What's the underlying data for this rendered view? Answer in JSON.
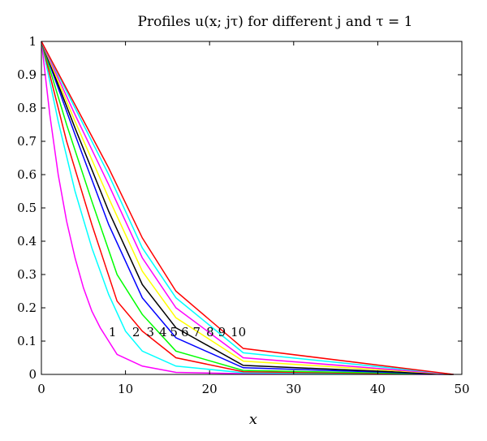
{
  "chart_data": {
    "type": "line",
    "title": "Profiles u(x; jτ) for different j and τ = 1",
    "xlabel": "x",
    "ylabel": "",
    "xlim": [
      0,
      50
    ],
    "ylim": [
      0,
      1
    ],
    "xticks": [
      "0",
      "10",
      "20",
      "30",
      "40",
      "50"
    ],
    "yticks": [
      "0",
      "0.1",
      "0.2",
      "0.3",
      "0.4",
      "0.5",
      "0.6",
      "0.7",
      "0.8",
      "0.9",
      "1"
    ],
    "grid": false,
    "series": [
      {
        "label": "1",
        "color": "#ff00ff",
        "x": [
          0,
          1,
          2,
          3,
          4,
          5,
          6,
          7,
          8,
          9,
          12,
          16,
          24,
          49
        ],
        "y": [
          1.0,
          0.78,
          0.6,
          0.46,
          0.35,
          0.26,
          0.19,
          0.14,
          0.1,
          0.06,
          0.025,
          0.006,
          0.002,
          0.0
        ]
      },
      {
        "label": "2",
        "color": "#00ffff",
        "x": [
          0,
          2,
          4,
          6,
          8,
          10,
          12,
          16,
          24,
          49
        ],
        "y": [
          1.0,
          0.76,
          0.55,
          0.38,
          0.24,
          0.13,
          0.07,
          0.025,
          0.005,
          0.0
        ]
      },
      {
        "label": "3",
        "color": "#ff0000",
        "x": [
          0,
          3,
          6,
          9,
          12,
          16,
          24,
          49
        ],
        "y": [
          1.0,
          0.7,
          0.45,
          0.22,
          0.13,
          0.05,
          0.008,
          0.0
        ]
      },
      {
        "label": "4",
        "color": "#00ff00",
        "x": [
          0,
          3,
          6,
          9,
          12,
          16,
          24,
          49
        ],
        "y": [
          1.0,
          0.75,
          0.52,
          0.3,
          0.18,
          0.07,
          0.012,
          0.0
        ]
      },
      {
        "label": "5",
        "color": "#0000ff",
        "x": [
          0,
          4,
          8,
          12,
          16,
          24,
          49
        ],
        "y": [
          1.0,
          0.72,
          0.45,
          0.23,
          0.11,
          0.02,
          0.0
        ]
      },
      {
        "label": "6",
        "color": "#000000",
        "x": [
          0,
          4,
          8,
          12,
          16,
          24,
          49
        ],
        "y": [
          1.0,
          0.74,
          0.49,
          0.27,
          0.14,
          0.027,
          0.0
        ]
      },
      {
        "label": "7",
        "color": "#ffff00",
        "x": [
          0,
          4,
          8,
          12,
          16,
          24,
          49
        ],
        "y": [
          1.0,
          0.76,
          0.53,
          0.31,
          0.17,
          0.04,
          0.0
        ]
      },
      {
        "label": "8",
        "color": "#ff00ff",
        "x": [
          0,
          4,
          8,
          12,
          16,
          24,
          49
        ],
        "y": [
          1.0,
          0.78,
          0.57,
          0.35,
          0.2,
          0.05,
          0.0
        ]
      },
      {
        "label": "9",
        "color": "#00ffff",
        "x": [
          0,
          4,
          8,
          12,
          16,
          24,
          49
        ],
        "y": [
          1.0,
          0.8,
          0.6,
          0.38,
          0.23,
          0.065,
          0.0
        ]
      },
      {
        "label": "10",
        "color": "#ff0000",
        "x": [
          0,
          4,
          8,
          12,
          16,
          24,
          49
        ],
        "y": [
          1.0,
          0.81,
          0.62,
          0.41,
          0.25,
          0.078,
          0.0
        ]
      }
    ],
    "curve_labels": [
      {
        "text": "1",
        "x": 8.0,
        "y": 0.115
      },
      {
        "text": "2",
        "x": 10.8,
        "y": 0.115
      },
      {
        "text": "3",
        "x": 12.5,
        "y": 0.115
      },
      {
        "text": "4",
        "x": 14.0,
        "y": 0.115
      },
      {
        "text": "5",
        "x": 15.3,
        "y": 0.115
      },
      {
        "text": "6",
        "x": 16.6,
        "y": 0.115
      },
      {
        "text": "7",
        "x": 18.0,
        "y": 0.115
      },
      {
        "text": "8",
        "x": 19.6,
        "y": 0.115
      },
      {
        "text": "9",
        "x": 21.0,
        "y": 0.115
      },
      {
        "text": "10",
        "x": 22.5,
        "y": 0.115
      }
    ]
  }
}
